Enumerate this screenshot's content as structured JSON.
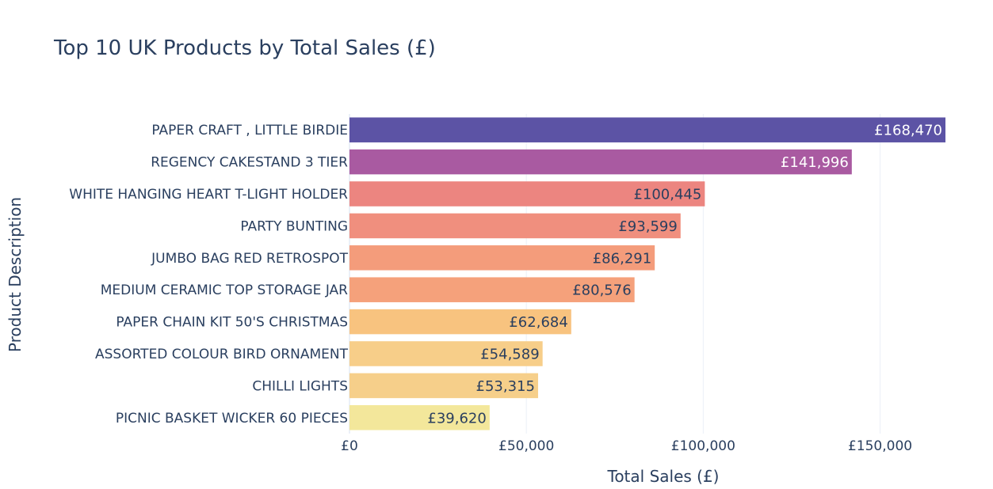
{
  "chart_data": {
    "type": "bar",
    "orientation": "horizontal",
    "title": "Top 10 UK Products by Total Sales (£)",
    "xlabel": "Total Sales (£)",
    "ylabel": "Product Description",
    "xlim": [
      0,
      170000
    ],
    "grid": true,
    "legend": "none",
    "categories": [
      "PAPER CRAFT , LITTLE BIRDIE",
      "REGENCY CAKESTAND 3 TIER",
      "WHITE HANGING HEART T-LIGHT HOLDER",
      "PARTY BUNTING",
      "JUMBO BAG RED RETROSPOT",
      "MEDIUM CERAMIC TOP STORAGE JAR",
      "PAPER CHAIN KIT 50'S CHRISTMAS",
      "ASSORTED COLOUR BIRD ORNAMENT",
      "CHILLI LIGHTS",
      "PICNIC BASKET WICKER 60 PIECES"
    ],
    "values": [
      168470,
      141996,
      100445,
      93599,
      86291,
      80576,
      62684,
      54589,
      53315,
      39620
    ],
    "data_labels": [
      "£168,470",
      "£141,996",
      "£100,445",
      "£93,599",
      "£86,291",
      "£80,576",
      "£62,684",
      "£54,589",
      "£53,315",
      "£39,620"
    ],
    "bar_colors": [
      "#5c53a5",
      "#a95aa1",
      "#ec8580",
      "#f08f7e",
      "#f49c7b",
      "#f5a17b",
      "#f8c37f",
      "#f7ce89",
      "#f6cf8a",
      "#f3e79b"
    ],
    "label_colors": [
      "#ffffff",
      "#ffffff",
      "#2a3f5f",
      "#2a3f5f",
      "#2a3f5f",
      "#2a3f5f",
      "#2a3f5f",
      "#2a3f5f",
      "#2a3f5f",
      "#2a3f5f"
    ],
    "xticks": [
      {
        "value": 0,
        "label": "£0"
      },
      {
        "value": 50000,
        "label": "£50,000"
      },
      {
        "value": 100000,
        "label": "£100,000"
      },
      {
        "value": 150000,
        "label": "£150,000"
      }
    ]
  }
}
